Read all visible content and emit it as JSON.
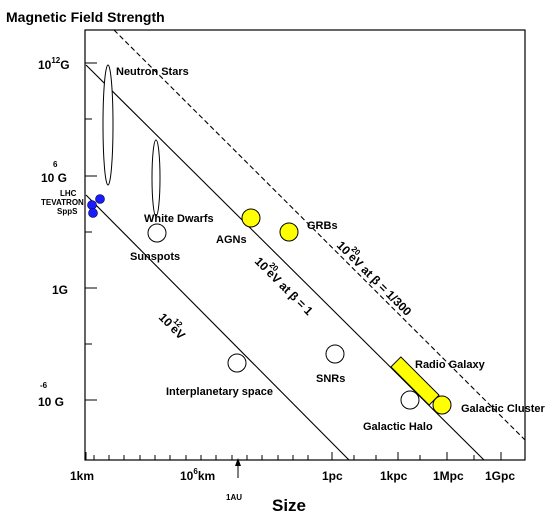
{
  "chart_data": {
    "type": "scatter",
    "title": "Magnetic Field Strength",
    "xlabel": "Size",
    "ylabel": "",
    "x_scale": "log (size)",
    "y_scale": "log (magnetic field)",
    "x_ticks": [
      "1km",
      "10^6km",
      "1pc",
      "1kpc",
      "1Mpc",
      "1Gpc"
    ],
    "x_annotation": "1AU",
    "y_ticks": [
      "10^12 G",
      "10^6 G",
      "1G",
      "10^-6 G"
    ],
    "lines": [
      {
        "label": "10^12 eV",
        "style": "solid"
      },
      {
        "label": "10^20 eV at β = 1",
        "style": "solid"
      },
      {
        "label": "10^20 eV at β = 1/300",
        "style": "dashed"
      }
    ],
    "objects": [
      {
        "name": "Neutron Stars",
        "shape": "open ellipse"
      },
      {
        "name": "White Dwarfs",
        "shape": "open ellipse"
      },
      {
        "name": "Sunspots",
        "shape": "open circle"
      },
      {
        "name": "AGNs",
        "shape": "filled circle",
        "color": "#ffff00"
      },
      {
        "name": "GRBs",
        "shape": "filled circle",
        "color": "#ffff00"
      },
      {
        "name": "Interplanetary space",
        "shape": "open circle"
      },
      {
        "name": "SNRs",
        "shape": "open circle"
      },
      {
        "name": "Radio Galaxy",
        "shape": "filled box",
        "color": "#ffff00"
      },
      {
        "name": "Galactic Halo",
        "shape": "open circle"
      },
      {
        "name": "Galactic Cluster",
        "shape": "filled circle",
        "color": "#ffff00"
      },
      {
        "name": "LHC TEVATRON SppS",
        "shape": "filled circles",
        "color": "#1a1aff"
      }
    ],
    "accelerator_labels": [
      "LHC",
      "TEVATRON",
      "SppS"
    ],
    "grid": false,
    "legend": "none"
  }
}
